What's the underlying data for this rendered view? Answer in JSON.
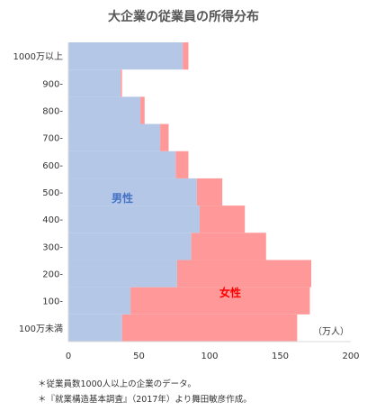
{
  "chart_data": {
    "type": "bar",
    "orientation": "horizontal",
    "stacked": true,
    "title": "大企業の従業員の所得分布",
    "categories": [
      "100万未満",
      "100-",
      "200-",
      "300-",
      "400-",
      "500-",
      "600-",
      "700-",
      "800-",
      "900-",
      "1000万以上"
    ],
    "series": [
      {
        "name": "男性",
        "color": "#b4c7e7",
        "values": [
          38,
          44,
          77,
          87,
          93,
          91,
          76,
          65,
          51,
          37,
          81
        ]
      },
      {
        "name": "女性",
        "color": "#ff9999",
        "values": [
          124,
          127,
          95,
          53,
          32,
          18,
          9,
          6,
          3,
          1,
          4
        ]
      }
    ],
    "xlim": [
      0,
      200
    ],
    "xticks": [
      "0",
      "50",
      "100",
      "150",
      "200"
    ],
    "unit": "（万人）",
    "grid": false,
    "legend": "in-chart labels"
  },
  "notes": [
    "＊従業員数1000人以上の企業のデータ。",
    "＊『就業構造基本調査』（2017年）より舞田敏彦作成。"
  ]
}
